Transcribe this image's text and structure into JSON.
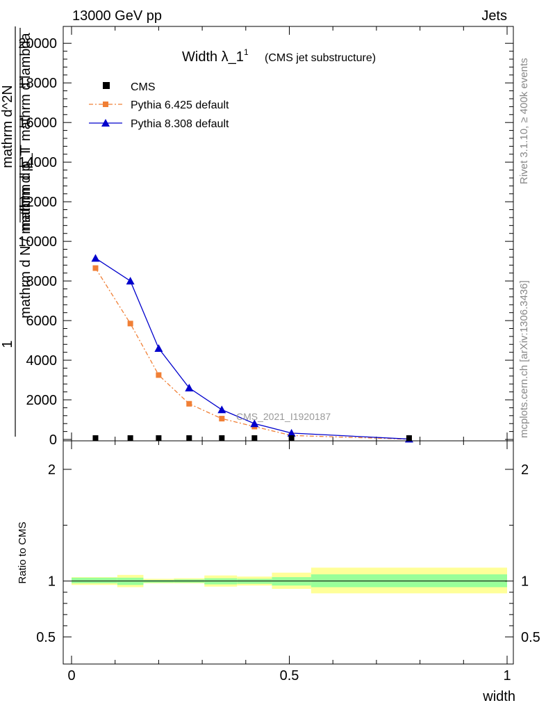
{
  "header": {
    "left": "13000 GeV pp",
    "right": "Jets"
  },
  "side_labels": {
    "rivet": "Rivet 3.1.10, ≥ 400k events",
    "mcplots": "mcplots.cern.ch [arXiv:1306.3436]"
  },
  "colors": {
    "cms": "#000000",
    "pythia6": "#f07f35",
    "pythia8": "#0000cc",
    "band_inner": "#99ff99",
    "band_outer": "#ffff99"
  },
  "chart_data": [
    {
      "type": "line",
      "title": "Width λ_1",
      "title_sup": "1",
      "title_suffix": "(CMS jet substructure)",
      "watermark": "CMS_2021_I1920187",
      "ylabel_numerator": "1",
      "ylabel_denominator": "mathrm d N / mathrm d p_T",
      "ylabel_inner_numerator": "mathrm d^2N",
      "ylabel_inner_denominator": "mathrm d p_T mathrm d lambda",
      "xlim": [
        0,
        1
      ],
      "ylim": [
        0,
        20500
      ],
      "yticks": [
        0,
        2000,
        4000,
        6000,
        8000,
        10000,
        12000,
        14000,
        16000,
        18000,
        20000
      ],
      "ytick_labels": [
        "0",
        "2000",
        "4000",
        "6000",
        "8000",
        "10000",
        "12000",
        "14000",
        "16000",
        "18000",
        "20000"
      ],
      "legend_position": "top-left",
      "series": [
        {
          "name": "CMS",
          "style": "marker",
          "x": [
            0.055,
            0.135,
            0.2,
            0.27,
            0.345,
            0.42,
            0.505,
            0.775
          ],
          "y": [
            0,
            0,
            0,
            0,
            0,
            0,
            0,
            0
          ]
        },
        {
          "name": "Pythia 6.425 default",
          "style": "dashdot-square",
          "x": [
            0.055,
            0.135,
            0.2,
            0.27,
            0.345,
            0.42,
            0.505,
            0.775
          ],
          "y": [
            8650,
            5850,
            3250,
            1800,
            1050,
            650,
            200,
            10
          ]
        },
        {
          "name": "Pythia 8.308 default",
          "style": "solid-triangle",
          "x": [
            0.055,
            0.135,
            0.2,
            0.27,
            0.345,
            0.42,
            0.505,
            0.775
          ],
          "y": [
            9150,
            8000,
            4600,
            2600,
            1500,
            800,
            320,
            20
          ]
        }
      ]
    },
    {
      "type": "area",
      "ylabel": "Ratio to CMS",
      "xlabel": "width",
      "xlim": [
        0,
        1
      ],
      "ylim": [
        0.35,
        2.3
      ],
      "yticks": [
        0.5,
        1,
        2
      ],
      "ytick_labels": [
        "0.5",
        "1",
        "2"
      ],
      "xticks": [
        0,
        0.5,
        1
      ],
      "xtick_labels": [
        "0",
        "0.5",
        "1"
      ],
      "bins": [
        {
          "x0": 0.0,
          "x1": 0.105,
          "inner": [
            0.98,
            1.03
          ],
          "outer": [
            0.965,
            1.035
          ]
        },
        {
          "x0": 0.105,
          "x1": 0.165,
          "inner": [
            0.965,
            1.03
          ],
          "outer": [
            0.945,
            1.055
          ]
        },
        {
          "x0": 0.165,
          "x1": 0.235,
          "inner": [
            0.985,
            1.01
          ],
          "outer": [
            0.98,
            1.02
          ]
        },
        {
          "x0": 0.235,
          "x1": 0.305,
          "inner": [
            0.985,
            1.015
          ],
          "outer": [
            0.98,
            1.025
          ]
        },
        {
          "x0": 0.305,
          "x1": 0.38,
          "inner": [
            0.97,
            1.025
          ],
          "outer": [
            0.95,
            1.05
          ]
        },
        {
          "x0": 0.38,
          "x1": 0.46,
          "inner": [
            0.975,
            1.02
          ],
          "outer": [
            0.96,
            1.04
          ]
        },
        {
          "x0": 0.46,
          "x1": 0.55,
          "inner": [
            0.96,
            1.035
          ],
          "outer": [
            0.93,
            1.075
          ]
        },
        {
          "x0": 0.55,
          "x1": 1.0,
          "inner": [
            0.945,
            1.06
          ],
          "outer": [
            0.89,
            1.12
          ]
        }
      ],
      "reference_line": 1
    }
  ]
}
